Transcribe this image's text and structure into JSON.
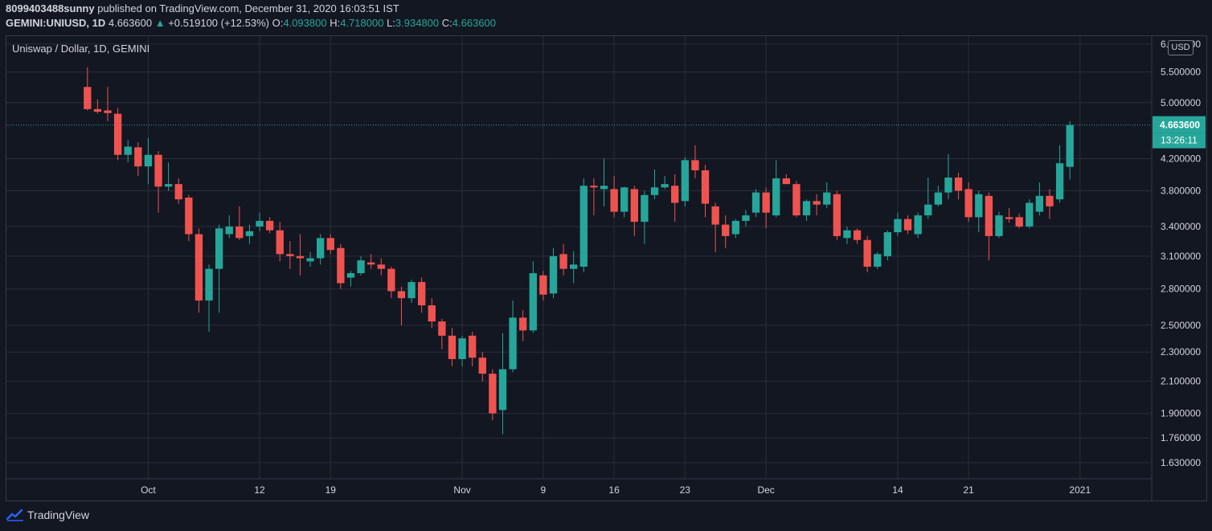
{
  "header": {
    "user": "8099403488sunny",
    "published_text": " published on TradingView.com, December 31, 2020 16:03:51 IST",
    "symbol": "GEMINI:UNIUSD, 1D",
    "last": "4.663600",
    "change": "+0.519100 (+12.53%)",
    "o_label": "O:",
    "o_value": "4.093800",
    "h_label": "H:",
    "h_value": "4.718000",
    "l_label": "L:",
    "l_value": "3.934800",
    "c_label": "C:",
    "c_value": "4.663600"
  },
  "chart_title": "Uniswap / Dollar, 1D, GEMINI",
  "currency": "USD",
  "footer": {
    "brand": "TradingView"
  },
  "colors": {
    "background": "#131722",
    "grid": "#2a2e39",
    "up": "#26a69a",
    "down": "#ef5350",
    "text": "#d1d4dc"
  },
  "chart_data": {
    "type": "candlestick",
    "title": "Uniswap / Dollar, 1D, GEMINI",
    "y_scale": "log",
    "ylim": [
      1.55,
      6.15
    ],
    "xlim": [
      "2020-09-17",
      "2021-01-08"
    ],
    "grid": true,
    "y_ticks": [
      "6.000000",
      "5.500000",
      "5.000000",
      "4.200000",
      "3.800000",
      "3.400000",
      "3.100000",
      "2.800000",
      "2.500000",
      "2.300000",
      "2.100000",
      "1.900000",
      "1.760000",
      "1.630000"
    ],
    "x_ticks": [
      {
        "date": "2020-10-01",
        "label": "Oct"
      },
      {
        "date": "2020-10-12",
        "label": "12"
      },
      {
        "date": "2020-10-19",
        "label": "19"
      },
      {
        "date": "2020-11-01",
        "label": "Nov"
      },
      {
        "date": "2020-11-09",
        "label": "9"
      },
      {
        "date": "2020-11-16",
        "label": "16"
      },
      {
        "date": "2020-11-23",
        "label": "23"
      },
      {
        "date": "2020-12-01",
        "label": "Dec"
      },
      {
        "date": "2020-12-14",
        "label": "14"
      },
      {
        "date": "2020-12-21",
        "label": "21"
      },
      {
        "date": "2021-01-01",
        "label": "2021"
      }
    ],
    "last_price": "4.663600",
    "countdown": "13:26:11",
    "candles": [
      {
        "t": "2020-09-25",
        "o": 5.25,
        "h": 5.58,
        "l": 4.88,
        "c": 4.9
      },
      {
        "t": "2020-09-26",
        "o": 4.9,
        "h": 5.05,
        "l": 4.83,
        "c": 4.86
      },
      {
        "t": "2020-09-27",
        "o": 4.88,
        "h": 5.25,
        "l": 4.72,
        "c": 4.84
      },
      {
        "t": "2020-09-28",
        "o": 4.83,
        "h": 4.92,
        "l": 4.18,
        "c": 4.25
      },
      {
        "t": "2020-09-29",
        "o": 4.25,
        "h": 4.45,
        "l": 4.15,
        "c": 4.36
      },
      {
        "t": "2020-09-30",
        "o": 4.35,
        "h": 4.42,
        "l": 3.98,
        "c": 4.1
      },
      {
        "t": "2020-10-01",
        "o": 4.1,
        "h": 4.48,
        "l": 3.88,
        "c": 4.25
      },
      {
        "t": "2020-10-02",
        "o": 4.25,
        "h": 4.3,
        "l": 3.55,
        "c": 3.85
      },
      {
        "t": "2020-10-03",
        "o": 3.85,
        "h": 4.15,
        "l": 3.8,
        "c": 3.88
      },
      {
        "t": "2020-10-04",
        "o": 3.88,
        "h": 3.95,
        "l": 3.65,
        "c": 3.7
      },
      {
        "t": "2020-10-05",
        "o": 3.72,
        "h": 3.75,
        "l": 3.25,
        "c": 3.32
      },
      {
        "t": "2020-10-06",
        "o": 3.32,
        "h": 3.38,
        "l": 2.6,
        "c": 2.7
      },
      {
        "t": "2020-10-07",
        "o": 2.7,
        "h": 3.02,
        "l": 2.45,
        "c": 2.98
      },
      {
        "t": "2020-10-08",
        "o": 2.98,
        "h": 3.42,
        "l": 2.6,
        "c": 3.38
      },
      {
        "t": "2020-10-09",
        "o": 3.32,
        "h": 3.52,
        "l": 3.28,
        "c": 3.4
      },
      {
        "t": "2020-10-10",
        "o": 3.4,
        "h": 3.62,
        "l": 3.26,
        "c": 3.28
      },
      {
        "t": "2020-10-11",
        "o": 3.3,
        "h": 3.42,
        "l": 3.22,
        "c": 3.35
      },
      {
        "t": "2020-10-12",
        "o": 3.4,
        "h": 3.55,
        "l": 3.35,
        "c": 3.46
      },
      {
        "t": "2020-10-13",
        "o": 3.46,
        "h": 3.5,
        "l": 3.33,
        "c": 3.36
      },
      {
        "t": "2020-10-14",
        "o": 3.36,
        "h": 3.45,
        "l": 3.05,
        "c": 3.12
      },
      {
        "t": "2020-10-15",
        "o": 3.12,
        "h": 3.25,
        "l": 2.98,
        "c": 3.1
      },
      {
        "t": "2020-10-16",
        "o": 3.1,
        "h": 3.32,
        "l": 2.92,
        "c": 3.08
      },
      {
        "t": "2020-10-17",
        "o": 3.05,
        "h": 3.14,
        "l": 3.0,
        "c": 3.08
      },
      {
        "t": "2020-10-18",
        "o": 3.08,
        "h": 3.32,
        "l": 3.02,
        "c": 3.28
      },
      {
        "t": "2020-10-19",
        "o": 3.28,
        "h": 3.32,
        "l": 3.12,
        "c": 3.16
      },
      {
        "t": "2020-10-20",
        "o": 3.18,
        "h": 3.22,
        "l": 2.8,
        "c": 2.85
      },
      {
        "t": "2020-10-21",
        "o": 2.9,
        "h": 2.96,
        "l": 2.82,
        "c": 2.94
      },
      {
        "t": "2020-10-22",
        "o": 2.94,
        "h": 3.1,
        "l": 2.92,
        "c": 3.06
      },
      {
        "t": "2020-10-23",
        "o": 3.04,
        "h": 3.12,
        "l": 2.98,
        "c": 3.02
      },
      {
        "t": "2020-10-24",
        "o": 3.02,
        "h": 3.08,
        "l": 2.92,
        "c": 2.98
      },
      {
        "t": "2020-10-25",
        "o": 2.98,
        "h": 3.0,
        "l": 2.72,
        "c": 2.78
      },
      {
        "t": "2020-10-26",
        "o": 2.78,
        "h": 2.82,
        "l": 2.5,
        "c": 2.72
      },
      {
        "t": "2020-10-27",
        "o": 2.72,
        "h": 2.88,
        "l": 2.68,
        "c": 2.86
      },
      {
        "t": "2020-10-28",
        "o": 2.86,
        "h": 2.9,
        "l": 2.6,
        "c": 2.66
      },
      {
        "t": "2020-10-29",
        "o": 2.66,
        "h": 2.72,
        "l": 2.48,
        "c": 2.53
      },
      {
        "t": "2020-10-30",
        "o": 2.53,
        "h": 2.55,
        "l": 2.32,
        "c": 2.42
      },
      {
        "t": "2020-10-31",
        "o": 2.42,
        "h": 2.48,
        "l": 2.2,
        "c": 2.25
      },
      {
        "t": "2020-11-01",
        "o": 2.25,
        "h": 2.42,
        "l": 2.2,
        "c": 2.4
      },
      {
        "t": "2020-11-02",
        "o": 2.42,
        "h": 2.45,
        "l": 2.2,
        "c": 2.26
      },
      {
        "t": "2020-11-03",
        "o": 2.26,
        "h": 2.3,
        "l": 2.1,
        "c": 2.15
      },
      {
        "t": "2020-11-04",
        "o": 2.15,
        "h": 2.18,
        "l": 1.86,
        "c": 1.9
      },
      {
        "t": "2020-11-05",
        "o": 1.92,
        "h": 2.44,
        "l": 1.78,
        "c": 2.18
      },
      {
        "t": "2020-11-06",
        "o": 2.18,
        "h": 2.7,
        "l": 2.16,
        "c": 2.56
      },
      {
        "t": "2020-11-07",
        "o": 2.56,
        "h": 2.62,
        "l": 2.38,
        "c": 2.46
      },
      {
        "t": "2020-11-08",
        "o": 2.46,
        "h": 3.05,
        "l": 2.44,
        "c": 2.94
      },
      {
        "t": "2020-11-09",
        "o": 2.92,
        "h": 2.96,
        "l": 2.7,
        "c": 2.75
      },
      {
        "t": "2020-11-10",
        "o": 2.76,
        "h": 3.18,
        "l": 2.72,
        "c": 3.1
      },
      {
        "t": "2020-11-11",
        "o": 3.12,
        "h": 3.22,
        "l": 2.92,
        "c": 2.98
      },
      {
        "t": "2020-11-12",
        "o": 2.98,
        "h": 3.15,
        "l": 2.85,
        "c": 3.02
      },
      {
        "t": "2020-11-13",
        "o": 3.0,
        "h": 3.95,
        "l": 2.95,
        "c": 3.86
      },
      {
        "t": "2020-11-14",
        "o": 3.86,
        "h": 3.95,
        "l": 3.52,
        "c": 3.84
      },
      {
        "t": "2020-11-15",
        "o": 3.82,
        "h": 4.2,
        "l": 3.62,
        "c": 3.86
      },
      {
        "t": "2020-11-16",
        "o": 3.82,
        "h": 3.98,
        "l": 3.5,
        "c": 3.56
      },
      {
        "t": "2020-11-17",
        "o": 3.56,
        "h": 3.85,
        "l": 3.5,
        "c": 3.84
      },
      {
        "t": "2020-11-18",
        "o": 3.82,
        "h": 3.86,
        "l": 3.3,
        "c": 3.45
      },
      {
        "t": "2020-11-19",
        "o": 3.45,
        "h": 3.8,
        "l": 3.22,
        "c": 3.75
      },
      {
        "t": "2020-11-20",
        "o": 3.75,
        "h": 4.06,
        "l": 3.7,
        "c": 3.84
      },
      {
        "t": "2020-11-21",
        "o": 3.84,
        "h": 3.98,
        "l": 3.82,
        "c": 3.88
      },
      {
        "t": "2020-11-22",
        "o": 3.86,
        "h": 4.0,
        "l": 3.45,
        "c": 3.66
      },
      {
        "t": "2020-11-23",
        "o": 3.68,
        "h": 4.22,
        "l": 3.62,
        "c": 4.18
      },
      {
        "t": "2020-11-24",
        "o": 4.18,
        "h": 4.38,
        "l": 3.95,
        "c": 4.05
      },
      {
        "t": "2020-11-25",
        "o": 4.05,
        "h": 4.12,
        "l": 3.5,
        "c": 3.65
      },
      {
        "t": "2020-11-26",
        "o": 3.62,
        "h": 3.66,
        "l": 3.14,
        "c": 3.42
      },
      {
        "t": "2020-11-27",
        "o": 3.42,
        "h": 3.52,
        "l": 3.18,
        "c": 3.3
      },
      {
        "t": "2020-11-28",
        "o": 3.32,
        "h": 3.48,
        "l": 3.28,
        "c": 3.46
      },
      {
        "t": "2020-11-29",
        "o": 3.46,
        "h": 3.58,
        "l": 3.4,
        "c": 3.52
      },
      {
        "t": "2020-11-30",
        "o": 3.55,
        "h": 3.82,
        "l": 3.5,
        "c": 3.78
      },
      {
        "t": "2020-12-01",
        "o": 3.78,
        "h": 3.84,
        "l": 3.38,
        "c": 3.55
      },
      {
        "t": "2020-12-02",
        "o": 3.52,
        "h": 4.18,
        "l": 3.5,
        "c": 3.95
      },
      {
        "t": "2020-12-03",
        "o": 3.95,
        "h": 4.0,
        "l": 3.9,
        "c": 3.88
      },
      {
        "t": "2020-12-04",
        "o": 3.88,
        "h": 3.92,
        "l": 3.5,
        "c": 3.52
      },
      {
        "t": "2020-12-05",
        "o": 3.52,
        "h": 3.7,
        "l": 3.46,
        "c": 3.68
      },
      {
        "t": "2020-12-06",
        "o": 3.68,
        "h": 3.76,
        "l": 3.52,
        "c": 3.64
      },
      {
        "t": "2020-12-07",
        "o": 3.64,
        "h": 3.9,
        "l": 3.6,
        "c": 3.78
      },
      {
        "t": "2020-12-08",
        "o": 3.76,
        "h": 3.8,
        "l": 3.26,
        "c": 3.3
      },
      {
        "t": "2020-12-09",
        "o": 3.28,
        "h": 3.4,
        "l": 3.22,
        "c": 3.36
      },
      {
        "t": "2020-12-10",
        "o": 3.36,
        "h": 3.38,
        "l": 3.22,
        "c": 3.26
      },
      {
        "t": "2020-12-11",
        "o": 3.26,
        "h": 3.3,
        "l": 2.95,
        "c": 3.0
      },
      {
        "t": "2020-12-12",
        "o": 3.0,
        "h": 3.14,
        "l": 2.98,
        "c": 3.12
      },
      {
        "t": "2020-12-13",
        "o": 3.1,
        "h": 3.36,
        "l": 3.06,
        "c": 3.34
      },
      {
        "t": "2020-12-14",
        "o": 3.34,
        "h": 3.55,
        "l": 3.3,
        "c": 3.48
      },
      {
        "t": "2020-12-15",
        "o": 3.48,
        "h": 3.52,
        "l": 3.32,
        "c": 3.36
      },
      {
        "t": "2020-12-16",
        "o": 3.32,
        "h": 3.55,
        "l": 3.28,
        "c": 3.52
      },
      {
        "t": "2020-12-17",
        "o": 3.52,
        "h": 3.96,
        "l": 3.48,
        "c": 3.64
      },
      {
        "t": "2020-12-18",
        "o": 3.64,
        "h": 3.86,
        "l": 3.62,
        "c": 3.78
      },
      {
        "t": "2020-12-19",
        "o": 3.78,
        "h": 4.26,
        "l": 3.7,
        "c": 3.96
      },
      {
        "t": "2020-12-20",
        "o": 3.96,
        "h": 4.02,
        "l": 3.7,
        "c": 3.8
      },
      {
        "t": "2020-12-21",
        "o": 3.82,
        "h": 3.9,
        "l": 3.45,
        "c": 3.5
      },
      {
        "t": "2020-12-22",
        "o": 3.5,
        "h": 3.8,
        "l": 3.34,
        "c": 3.76
      },
      {
        "t": "2020-12-23",
        "o": 3.74,
        "h": 3.78,
        "l": 3.06,
        "c": 3.3
      },
      {
        "t": "2020-12-24",
        "o": 3.3,
        "h": 3.56,
        "l": 3.28,
        "c": 3.52
      },
      {
        "t": "2020-12-25",
        "o": 3.5,
        "h": 3.6,
        "l": 3.44,
        "c": 3.48
      },
      {
        "t": "2020-12-26",
        "o": 3.5,
        "h": 3.54,
        "l": 3.38,
        "c": 3.4
      },
      {
        "t": "2020-12-27",
        "o": 3.4,
        "h": 3.7,
        "l": 3.38,
        "c": 3.66
      },
      {
        "t": "2020-12-28",
        "o": 3.56,
        "h": 3.9,
        "l": 3.52,
        "c": 3.74
      },
      {
        "t": "2020-12-29",
        "o": 3.74,
        "h": 3.82,
        "l": 3.48,
        "c": 3.62
      },
      {
        "t": "2020-12-30",
        "o": 3.7,
        "h": 4.38,
        "l": 3.66,
        "c": 4.14
      },
      {
        "t": "2020-12-31",
        "o": 4.0938,
        "h": 4.718,
        "l": 3.9348,
        "c": 4.6636
      }
    ]
  }
}
